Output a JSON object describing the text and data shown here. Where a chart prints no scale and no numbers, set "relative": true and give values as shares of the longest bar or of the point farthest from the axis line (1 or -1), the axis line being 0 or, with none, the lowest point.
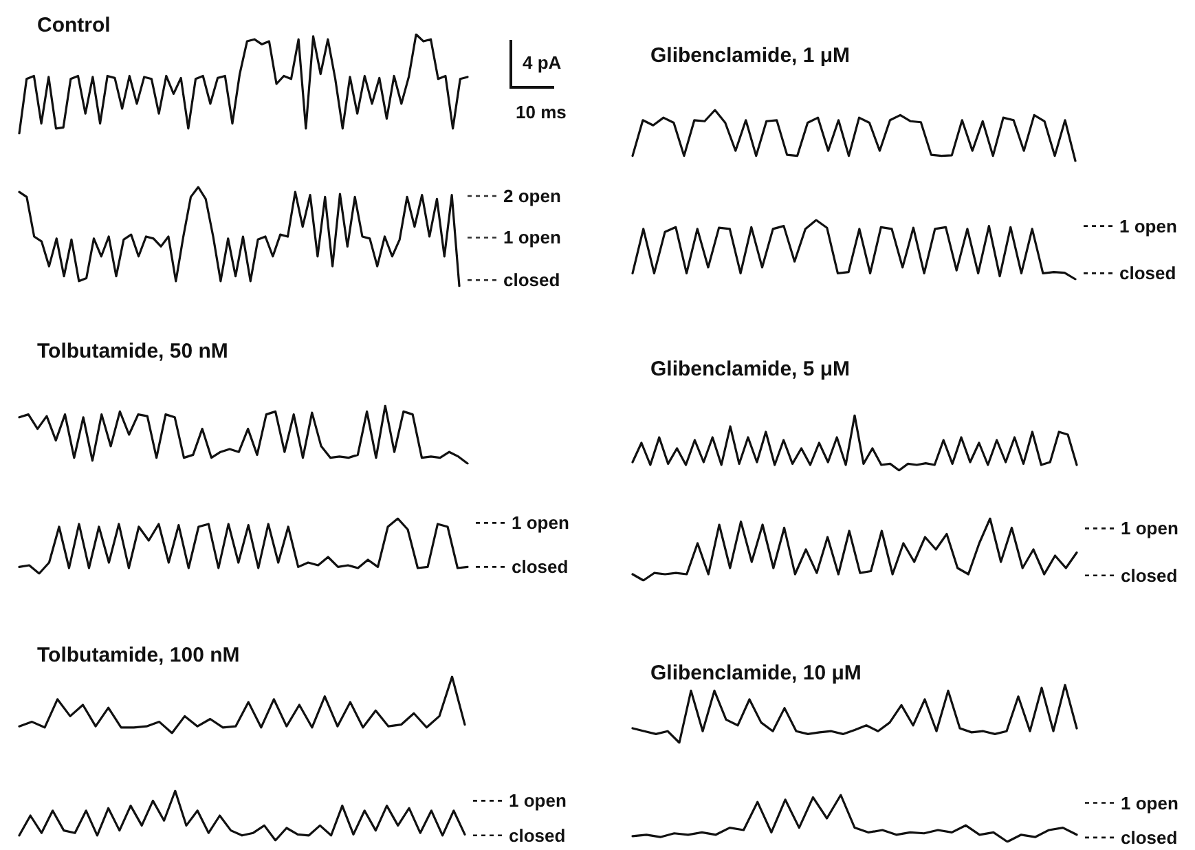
{
  "chart_data": [
    {
      "type": "line",
      "title": "Control",
      "relative": true,
      "annotations": [
        "4 pA",
        "10 ms"
      ],
      "categories": [
        null,
        null,
        null,
        null,
        null,
        null,
        null,
        null,
        null,
        null,
        null,
        null,
        null,
        null,
        null,
        null,
        null,
        null,
        null,
        null,
        null,
        null,
        null,
        null,
        null,
        null,
        null,
        null,
        null,
        null,
        null,
        null,
        null,
        null,
        null,
        null,
        null,
        null,
        null,
        null,
        null,
        null,
        null,
        null,
        null,
        null,
        null,
        null,
        null,
        null,
        null,
        null,
        null,
        null,
        null,
        null,
        null,
        null,
        null,
        null,
        null,
        null
      ],
      "series": [
        {
          "color": "#111111",
          "values": [
            0,
            0.55,
            0.58,
            0.1,
            0.57,
            0.05,
            0.06,
            0.55,
            0.58,
            0.2,
            0.57,
            0.1,
            0.58,
            0.56,
            0.25,
            0.58,
            0.3,
            0.57,
            0.55,
            0.2,
            0.58,
            0.4,
            0.56,
            0.05,
            0.55,
            0.58,
            0.3,
            0.56,
            0.58,
            0.1,
            0.6,
            0.93,
            0.95,
            0.9,
            0.93,
            0.5,
            0.58,
            0.55,
            0.95,
            0.05,
            0.98,
            0.6,
            0.95,
            0.55,
            0.05,
            0.57,
            0.2,
            0.58,
            0.3,
            0.56,
            0.15,
            0.58,
            0.3,
            0.57,
            1,
            0.93,
            0.95,
            0.55,
            0.58,
            0.05,
            0.55,
            0.57
          ]
        }
      ]
    },
    {
      "type": "line",
      "relative": true,
      "categories": [
        null,
        null,
        null,
        null,
        null,
        null,
        null,
        null,
        null,
        null,
        null,
        null,
        null,
        null,
        null,
        null,
        null,
        null,
        null,
        null,
        null,
        null,
        null,
        null,
        null,
        null,
        null,
        null,
        null,
        null,
        null,
        null,
        null,
        null,
        null,
        null,
        null,
        null,
        null,
        null,
        null,
        null,
        null,
        null,
        null,
        null,
        null,
        null,
        null,
        null,
        null,
        null,
        null,
        null,
        null,
        null,
        null,
        null,
        null,
        null
      ],
      "series": [
        {
          "color": "#111111",
          "values": [
            0.95,
            0.9,
            0.5,
            0.45,
            0.2,
            0.48,
            0.1,
            0.47,
            0.05,
            0.08,
            0.48,
            0.3,
            0.5,
            0.1,
            0.47,
            0.52,
            0.3,
            0.5,
            0.48,
            0.4,
            0.5,
            0.05,
            0.5,
            0.9,
            1,
            0.88,
            0.5,
            0.05,
            0.48,
            0.1,
            0.5,
            0.05,
            0.47,
            0.5,
            0.3,
            0.52,
            0.5,
            0.95,
            0.6,
            0.92,
            0.3,
            0.9,
            0.2,
            0.93,
            0.4,
            0.9,
            0.5,
            0.48,
            0.2,
            0.5,
            0.3,
            0.47,
            0.9,
            0.6,
            0.92,
            0.5,
            0.88,
            0.3,
            0.92,
            0
          ]
        }
      ],
      "ref_lines": [
        {
          "axis": "y",
          "value": 0.91,
          "label": "2 open",
          "color": "#333333"
        },
        {
          "axis": "y",
          "value": 0.49,
          "label": "1 open",
          "color": "#333333"
        },
        {
          "axis": "y",
          "value": 0.06,
          "label": "closed",
          "color": "#333333"
        }
      ]
    },
    {
      "type": "line",
      "title": "Glibenclamide, 1 μM",
      "relative": true,
      "categories": [
        null,
        null,
        null,
        null,
        null,
        null,
        null,
        null,
        null,
        null,
        null,
        null,
        null,
        null,
        null,
        null,
        null,
        null,
        null,
        null,
        null,
        null,
        null,
        null,
        null,
        null,
        null,
        null,
        null,
        null,
        null,
        null,
        null,
        null,
        null,
        null,
        null,
        null,
        null,
        null,
        null,
        null,
        null,
        null
      ],
      "series": [
        {
          "color": "#111111",
          "values": [
            0.1,
            0.8,
            0.7,
            0.85,
            0.75,
            0.1,
            0.8,
            0.78,
            1,
            0.75,
            0.2,
            0.8,
            0.1,
            0.78,
            0.8,
            0.12,
            0.1,
            0.75,
            0.85,
            0.2,
            0.8,
            0.1,
            0.85,
            0.75,
            0.2,
            0.8,
            0.9,
            0.78,
            0.76,
            0.12,
            0.1,
            0.11,
            0.8,
            0.2,
            0.78,
            0.1,
            0.85,
            0.8,
            0.2,
            0.9,
            0.78,
            0.1,
            0.8,
            0
          ]
        }
      ]
    },
    {
      "type": "line",
      "relative": true,
      "categories": [
        null,
        null,
        null,
        null,
        null,
        null,
        null,
        null,
        null,
        null,
        null,
        null,
        null,
        null,
        null,
        null,
        null,
        null,
        null,
        null,
        null,
        null,
        null,
        null,
        null,
        null,
        null,
        null,
        null,
        null,
        null,
        null,
        null,
        null,
        null,
        null,
        null,
        null,
        null,
        null,
        null,
        null
      ],
      "series": [
        {
          "color": "#111111",
          "values": [
            0.1,
            0.85,
            0.1,
            0.8,
            0.88,
            0.1,
            0.85,
            0.2,
            0.87,
            0.85,
            0.1,
            0.88,
            0.2,
            0.85,
            0.9,
            0.3,
            0.85,
            1,
            0.87,
            0.1,
            0.12,
            0.85,
            0.1,
            0.88,
            0.85,
            0.2,
            0.87,
            0.1,
            0.85,
            0.88,
            0.15,
            0.85,
            0.1,
            0.9,
            0.05,
            0.88,
            0.1,
            0.85,
            0.1,
            0.12,
            0.11,
            0
          ]
        }
      ],
      "ref_lines": [
        {
          "axis": "y",
          "value": 0.9,
          "label": "1 open"
        },
        {
          "axis": "y",
          "value": 0.1,
          "label": "closed"
        }
      ]
    },
    {
      "type": "line",
      "title": "Tolbutamide, 50 nM",
      "relative": true,
      "categories": [
        null,
        null,
        null,
        null,
        null,
        null,
        null,
        null,
        null,
        null,
        null,
        null,
        null,
        null,
        null,
        null,
        null,
        null,
        null,
        null,
        null,
        null,
        null,
        null,
        null,
        null,
        null,
        null,
        null,
        null,
        null,
        null,
        null,
        null,
        null,
        null,
        null,
        null,
        null,
        null,
        null,
        null,
        null,
        null,
        null,
        null,
        null,
        null,
        null,
        null
      ],
      "series": [
        {
          "color": "#111111",
          "values": [
            0.8,
            0.85,
            0.6,
            0.82,
            0.4,
            0.85,
            0.1,
            0.8,
            0.05,
            0.85,
            0.3,
            0.9,
            0.5,
            0.85,
            0.82,
            0.1,
            0.85,
            0.8,
            0.1,
            0.15,
            0.6,
            0.1,
            0.2,
            0.25,
            0.2,
            0.6,
            0.15,
            0.85,
            0.9,
            0.2,
            0.85,
            0.1,
            0.88,
            0.3,
            0.1,
            0.12,
            0.1,
            0.15,
            0.9,
            0.1,
            1,
            0.2,
            0.9,
            0.85,
            0.1,
            0.12,
            0.1,
            0.2,
            0.12,
            0
          ]
        }
      ]
    },
    {
      "type": "line",
      "relative": true,
      "categories": [
        null,
        null,
        null,
        null,
        null,
        null,
        null,
        null,
        null,
        null,
        null,
        null,
        null,
        null,
        null,
        null,
        null,
        null,
        null,
        null,
        null,
        null,
        null,
        null,
        null,
        null,
        null,
        null,
        null,
        null,
        null,
        null,
        null,
        null,
        null,
        null,
        null,
        null,
        null,
        null,
        null,
        null,
        null,
        null,
        null,
        null
      ],
      "series": [
        {
          "color": "#111111",
          "values": [
            0.12,
            0.15,
            0,
            0.2,
            0.85,
            0.1,
            0.9,
            0.1,
            0.85,
            0.2,
            0.9,
            0.1,
            0.85,
            0.6,
            0.9,
            0.2,
            0.88,
            0.1,
            0.85,
            0.9,
            0.1,
            0.9,
            0.2,
            0.88,
            0.1,
            0.9,
            0.2,
            0.85,
            0.12,
            0.2,
            0.15,
            0.3,
            0.12,
            0.15,
            0.1,
            0.25,
            0.12,
            0.85,
            1,
            0.8,
            0.1,
            0.12,
            0.9,
            0.85,
            0.1,
            0.12
          ]
        }
      ],
      "ref_lines": [
        {
          "axis": "y",
          "value": 0.92,
          "label": "1 open"
        },
        {
          "axis": "y",
          "value": 0.12,
          "label": "closed"
        }
      ]
    },
    {
      "type": "line",
      "title": "Glibenclamide, 5 μM",
      "relative": true,
      "categories": [
        null,
        null,
        null,
        null,
        null,
        null,
        null,
        null,
        null,
        null,
        null,
        null,
        null,
        null,
        null,
        null,
        null,
        null,
        null,
        null,
        null,
        null,
        null,
        null,
        null,
        null,
        null,
        null,
        null,
        null,
        null,
        null,
        null,
        null,
        null,
        null,
        null,
        null,
        null,
        null,
        null,
        null,
        null,
        null,
        null,
        null,
        null,
        null,
        null,
        null,
        null
      ],
      "series": [
        {
          "color": "#111111",
          "values": [
            0.15,
            0.5,
            0.1,
            0.6,
            0.12,
            0.4,
            0.1,
            0.55,
            0.15,
            0.6,
            0.1,
            0.8,
            0.12,
            0.6,
            0.15,
            0.7,
            0.1,
            0.55,
            0.12,
            0.4,
            0.1,
            0.5,
            0.15,
            0.6,
            0.1,
            1,
            0.12,
            0.4,
            0.1,
            0.12,
            0,
            0.12,
            0.1,
            0.13,
            0.1,
            0.55,
            0.12,
            0.6,
            0.15,
            0.5,
            0.1,
            0.55,
            0.15,
            0.6,
            0.12,
            0.7,
            0.1,
            0.15,
            0.7,
            0.65,
            0.1
          ]
        }
      ]
    },
    {
      "type": "line",
      "relative": true,
      "categories": [
        null,
        null,
        null,
        null,
        null,
        null,
        null,
        null,
        null,
        null,
        null,
        null,
        null,
        null,
        null,
        null,
        null,
        null,
        null,
        null,
        null,
        null,
        null,
        null,
        null,
        null,
        null,
        null,
        null,
        null,
        null,
        null,
        null,
        null,
        null,
        null,
        null,
        null,
        null,
        null,
        null,
        null
      ],
      "series": [
        {
          "color": "#111111",
          "values": [
            0.1,
            0,
            0.12,
            0.1,
            0.12,
            0.1,
            0.6,
            0.1,
            0.9,
            0.2,
            0.95,
            0.3,
            0.9,
            0.2,
            0.85,
            0.1,
            0.5,
            0.12,
            0.7,
            0.1,
            0.8,
            0.12,
            0.15,
            0.8,
            0.1,
            0.6,
            0.3,
            0.7,
            0.5,
            0.75,
            0.2,
            0.1,
            0.6,
            1,
            0.3,
            0.85,
            0.2,
            0.5,
            0.1,
            0.4,
            0.2,
            0.45
          ]
        }
      ],
      "ref_lines": [
        {
          "axis": "y",
          "value": 0.84,
          "label": "1 open"
        },
        {
          "axis": "y",
          "value": 0.08,
          "label": "closed"
        }
      ]
    },
    {
      "type": "line",
      "title": "Tolbutamide, 100 nM",
      "relative": true,
      "categories": [
        null,
        null,
        null,
        null,
        null,
        null,
        null,
        null,
        null,
        null,
        null,
        null,
        null,
        null,
        null,
        null,
        null,
        null,
        null,
        null,
        null,
        null,
        null,
        null,
        null,
        null,
        null,
        null,
        null,
        null,
        null,
        null,
        null,
        null,
        null,
        null
      ],
      "series": [
        {
          "color": "#111111",
          "values": [
            0.12,
            0.2,
            0.1,
            0.6,
            0.3,
            0.5,
            0.12,
            0.45,
            0.1,
            0.1,
            0.12,
            0.2,
            0,
            0.3,
            0.12,
            0.25,
            0.1,
            0.12,
            0.55,
            0.1,
            0.6,
            0.12,
            0.5,
            0.1,
            0.65,
            0.12,
            0.55,
            0.1,
            0.4,
            0.12,
            0.15,
            0.35,
            0.1,
            0.3,
            1,
            0.15
          ]
        }
      ]
    },
    {
      "type": "line",
      "relative": true,
      "categories": [
        null,
        null,
        null,
        null,
        null,
        null,
        null,
        null,
        null,
        null,
        null,
        null,
        null,
        null,
        null,
        null,
        null,
        null,
        null,
        null,
        null,
        null,
        null,
        null,
        null,
        null,
        null,
        null,
        null,
        null,
        null,
        null,
        null,
        null,
        null,
        null,
        null,
        null,
        null,
        null,
        null
      ],
      "series": [
        {
          "color": "#111111",
          "values": [
            0.1,
            0.5,
            0.15,
            0.6,
            0.2,
            0.15,
            0.6,
            0.1,
            0.65,
            0.2,
            0.7,
            0.3,
            0.8,
            0.4,
            1,
            0.3,
            0.6,
            0.15,
            0.5,
            0.2,
            0.1,
            0.15,
            0.3,
            0,
            0.25,
            0.12,
            0.1,
            0.3,
            0.1,
            0.7,
            0.12,
            0.6,
            0.2,
            0.7,
            0.3,
            0.65,
            0.15,
            0.6,
            0.1,
            0.6,
            0.12
          ]
        }
      ],
      "ref_lines": [
        {
          "axis": "y",
          "value": 0.8,
          "label": "1 open"
        },
        {
          "axis": "y",
          "value": 0.1,
          "label": "closed"
        }
      ]
    },
    {
      "type": "line",
      "title": "Glibenclamide, 10 μM",
      "relative": true,
      "categories": [
        null,
        null,
        null,
        null,
        null,
        null,
        null,
        null,
        null,
        null,
        null,
        null,
        null,
        null,
        null,
        null,
        null,
        null,
        null,
        null,
        null,
        null,
        null,
        null,
        null,
        null,
        null,
        null,
        null,
        null,
        null,
        null,
        null,
        null,
        null,
        null,
        null,
        null,
        null
      ],
      "series": [
        {
          "color": "#111111",
          "values": [
            0.25,
            0.2,
            0.15,
            0.2,
            0,
            0.9,
            0.2,
            0.9,
            0.4,
            0.3,
            0.75,
            0.35,
            0.2,
            0.6,
            0.2,
            0.15,
            0.18,
            0.2,
            0.15,
            0.22,
            0.3,
            0.2,
            0.35,
            0.65,
            0.3,
            0.75,
            0.2,
            0.9,
            0.25,
            0.18,
            0.2,
            0.15,
            0.2,
            0.8,
            0.2,
            0.95,
            0.2,
            1,
            0.25
          ]
        }
      ]
    },
    {
      "type": "line",
      "relative": true,
      "categories": [
        null,
        null,
        null,
        null,
        null,
        null,
        null,
        null,
        null,
        null,
        null,
        null,
        null,
        null,
        null,
        null,
        null,
        null,
        null,
        null,
        null,
        null,
        null,
        null,
        null,
        null,
        null,
        null,
        null,
        null,
        null,
        null,
        null
      ],
      "series": [
        {
          "color": "#111111",
          "values": [
            0.12,
            0.15,
            0.1,
            0.18,
            0.15,
            0.2,
            0.15,
            0.3,
            0.25,
            0.85,
            0.2,
            0.9,
            0.3,
            0.95,
            0.5,
            1,
            0.3,
            0.2,
            0.25,
            0.15,
            0.2,
            0.18,
            0.25,
            0.2,
            0.35,
            0.15,
            0.2,
            0,
            0.15,
            0.1,
            0.25,
            0.3,
            0.15
          ]
        }
      ],
      "ref_lines": [
        {
          "axis": "y",
          "value": 0.83,
          "label": "1 open"
        },
        {
          "axis": "y",
          "value": 0.09,
          "label": "closed"
        }
      ]
    }
  ]
}
